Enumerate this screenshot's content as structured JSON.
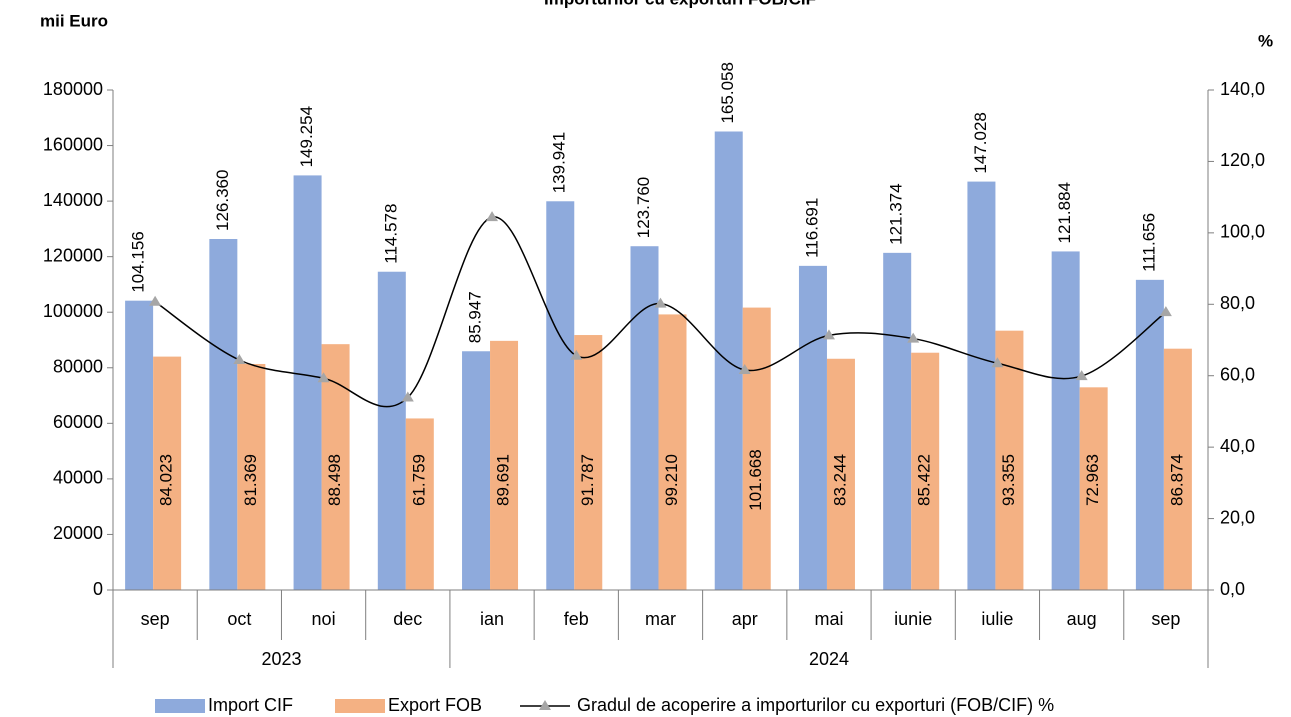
{
  "chart_data": {
    "type": "bar-line",
    "title": "Importurilor cu exporturi FOB/CIF",
    "y_label": "mii Euro",
    "y2_label": "%",
    "categories": [
      "sep",
      "oct",
      "noi",
      "dec",
      "ian",
      "feb",
      "mar",
      "apr",
      "mai",
      "iunie",
      "iulie",
      "aug",
      "sep"
    ],
    "year_groups": [
      {
        "label": "2023",
        "count": 4
      },
      {
        "label": "2024",
        "count": 9
      }
    ],
    "series": [
      {
        "name": "Import CIF",
        "type": "bar",
        "color": "#8eaadc",
        "values": [
          104156,
          126360,
          149254,
          114578,
          85947,
          139941,
          123760,
          165058,
          116691,
          121374,
          147028,
          121884,
          111656
        ],
        "value_labels": [
          "104.156",
          "126.360",
          "149.254",
          "114.578",
          "85.947",
          "139.941",
          "123.760",
          "165.058",
          "116.691",
          "121.374",
          "147.028",
          "121.884",
          "111.656"
        ]
      },
      {
        "name": "Export FOB",
        "type": "bar",
        "color": "#f4b183",
        "values": [
          84023,
          81369,
          88498,
          61759,
          89691,
          91787,
          99210,
          101668,
          83244,
          85422,
          93355,
          72963,
          86874
        ],
        "value_labels": [
          "84.023",
          "81.369",
          "88.498",
          "61.759",
          "89.691",
          "91.787",
          "99.210",
          "101.668",
          "83.244",
          "85.422",
          "93.355",
          "72.963",
          "86.874"
        ]
      },
      {
        "name": "Gradul de acoperire a importurilor cu exporturi (FOB/CIF) %",
        "type": "line",
        "axis": "y2",
        "color": "#000000",
        "marker_color": "#a6a6a6",
        "values": [
          80.7,
          64.4,
          59.3,
          53.9,
          104.4,
          65.6,
          80.2,
          61.6,
          71.3,
          70.4,
          63.5,
          59.9,
          77.8
        ]
      }
    ],
    "ylim": [
      0,
      180000
    ],
    "yticks": [
      0,
      20000,
      40000,
      60000,
      80000,
      100000,
      120000,
      140000,
      160000,
      180000
    ],
    "y2lim": [
      0,
      140
    ],
    "y2ticks": [
      {
        "value": 0,
        "label": "0,0"
      },
      {
        "value": 20,
        "label": "20,0"
      },
      {
        "value": 40,
        "label": "40,0"
      },
      {
        "value": 60,
        "label": "60,0"
      },
      {
        "value": 80,
        "label": "80,0"
      },
      {
        "value": 100,
        "label": "100,0"
      },
      {
        "value": 120,
        "label": "120,0"
      },
      {
        "value": 140,
        "label": "140,0"
      }
    ]
  }
}
